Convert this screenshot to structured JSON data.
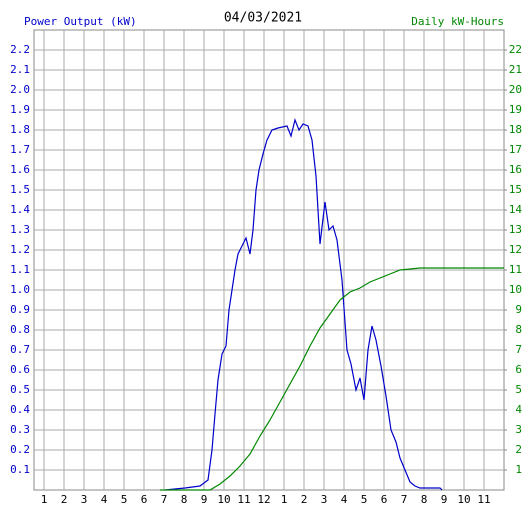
{
  "chart_data": {
    "type": "line",
    "title": "04/03/2021",
    "ylabel": "Power Output (kW)",
    "y2label": "Daily kW-Hours",
    "xlim": [
      0.5,
      24
    ],
    "ylim": [
      0,
      2.3
    ],
    "y2lim": [
      0,
      23
    ],
    "grid": true,
    "xticks": [
      1,
      2,
      3,
      4,
      5,
      6,
      7,
      8,
      9,
      10,
      11,
      12,
      {
        "value": 13,
        "label": "1"
      },
      {
        "value": 14,
        "label": "2"
      },
      {
        "value": 15,
        "label": "3"
      },
      {
        "value": 16,
        "label": "4"
      },
      {
        "value": 17,
        "label": "5"
      },
      {
        "value": 18,
        "label": "6"
      },
      {
        "value": 19,
        "label": "7"
      },
      {
        "value": 20,
        "label": "8"
      },
      {
        "value": 21,
        "label": "9"
      },
      {
        "value": 22,
        "label": "10"
      },
      {
        "value": 23,
        "label": "11"
      }
    ],
    "yticks": [
      0.1,
      0.2,
      0.3,
      0.4,
      0.5,
      0.6,
      0.7,
      0.8,
      0.9,
      {
        "value": 1,
        "label": "1.0"
      },
      1.1,
      1.2,
      1.3,
      1.4,
      1.5,
      1.6,
      1.7,
      1.8,
      1.9,
      {
        "value": 2,
        "label": "2.0"
      },
      2.1,
      2.2
    ],
    "y2ticks": [
      1,
      2,
      3,
      4,
      5,
      6,
      7,
      8,
      9,
      10,
      11,
      12,
      13,
      14,
      15,
      16,
      17,
      18,
      19,
      20,
      21,
      22
    ],
    "series": [
      {
        "name": "Power Output (kW)",
        "color": "#0000cc",
        "x": [
          7.05,
          8.05,
          8.8,
          9.2,
          9.4,
          9.55,
          9.7,
          9.9,
          10.1,
          10.25,
          10.4,
          10.55,
          10.7,
          10.9,
          11.1,
          11.3,
          11.45,
          11.6,
          11.75,
          11.95,
          12.15,
          12.4,
          12.7,
          13.15,
          13.35,
          13.55,
          13.75,
          13.95,
          14.2,
          14.4,
          14.6,
          14.8,
          15.05,
          15.25,
          15.45,
          15.65,
          15.9,
          16.15,
          16.35,
          16.6,
          16.8,
          17.0,
          17.2,
          17.4,
          17.6,
          17.85,
          18.1,
          18.35,
          18.6,
          18.8,
          19.05,
          19.3,
          19.55,
          19.8,
          20.3,
          20.8,
          20.9
        ],
        "values": [
          0,
          0.01,
          0.02,
          0.05,
          0.2,
          0.38,
          0.55,
          0.68,
          0.72,
          0.9,
          1.0,
          1.1,
          1.18,
          1.22,
          1.26,
          1.18,
          1.3,
          1.5,
          1.6,
          1.68,
          1.75,
          1.8,
          1.81,
          1.82,
          1.77,
          1.85,
          1.8,
          1.83,
          1.82,
          1.75,
          1.57,
          1.23,
          1.44,
          1.3,
          1.32,
          1.25,
          1.05,
          0.7,
          0.63,
          0.5,
          0.56,
          0.45,
          0.7,
          0.82,
          0.75,
          0.62,
          0.47,
          0.3,
          0.24,
          0.16,
          0.1,
          0.04,
          0.02,
          0.01,
          0.01,
          0.01,
          0
        ]
      },
      {
        "name": "Daily kW-Hours",
        "color": "#008800",
        "axis": "y2",
        "x": [
          6.8,
          9.3,
          9.8,
          10.3,
          10.8,
          11.3,
          11.8,
          12.3,
          12.8,
          13.3,
          13.8,
          14.3,
          14.8,
          15.3,
          15.8,
          16.3,
          16.8,
          17.3,
          17.8,
          18.3,
          18.8,
          19.3,
          19.8,
          24
        ],
        "values": [
          0,
          0,
          0.3,
          0.7,
          1.2,
          1.8,
          2.7,
          3.5,
          4.4,
          5.3,
          6.2,
          7.2,
          8.1,
          8.8,
          9.5,
          9.9,
          10.1,
          10.4,
          10.6,
          10.8,
          11.0,
          11.05,
          11.1,
          11.1
        ]
      }
    ]
  }
}
